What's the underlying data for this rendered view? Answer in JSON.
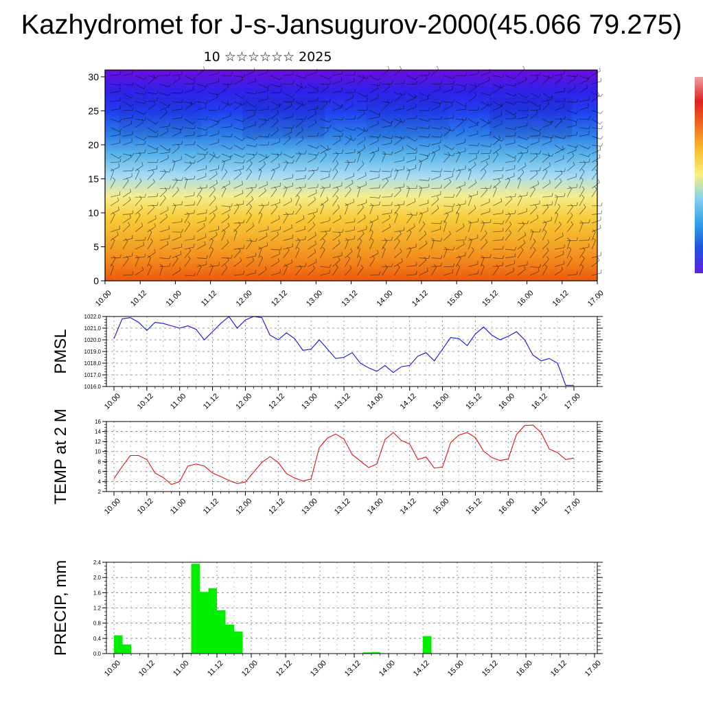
{
  "title": "Kazhydromet for J-s-Jansugurov-2000(45.066 79.275)",
  "subtitle": "10 ☆☆☆☆☆☆ 2025",
  "x_tick_labels": [
    "10.00",
    "10.12",
    "11.00",
    "11.12",
    "12.00",
    "12.12",
    "13.00",
    "13.12",
    "14.00",
    "14.12",
    "15.00",
    "15.12",
    "16.00",
    "16.12",
    "17.00"
  ],
  "chart_data": [
    {
      "type": "heatmap",
      "title": "",
      "xlabel": "",
      "ylabel": "",
      "x_ticks": [
        "10.00",
        "10.12",
        "11.00",
        "11.12",
        "12.00",
        "12.12",
        "13.00",
        "13.12",
        "14.00",
        "14.12",
        "15.00",
        "15.12",
        "16.00",
        "16.12",
        "17.00"
      ],
      "y_ticks": [
        0,
        5,
        10,
        15,
        20,
        25,
        30
      ],
      "ylim": [
        0,
        31
      ],
      "colors": [
        "#6a0fe0",
        "#3020e8",
        "#2040f0",
        "#2a7ae8",
        "#59b4ea",
        "#a6daf5",
        "#f6ee8c",
        "#f8cc3a",
        "#f5ae2a",
        "#f38a1c",
        "#ee5a0c"
      ],
      "colorbar_colors": [
        "#f0a0a0",
        "#e02020",
        "#f07020",
        "#f8c030",
        "#f8f080",
        "#80d0f0",
        "#30a0e8",
        "#2050e0",
        "#6020e0"
      ],
      "overlay": "wind barbs"
    },
    {
      "type": "line",
      "ylabel": "PMSL",
      "ylim": [
        1016.0,
        1022.0
      ],
      "y_ticks": [
        "1016.0",
        "1017.0",
        "1018.0",
        "1019.0",
        "1020.0",
        "1021.0",
        "1022.0"
      ],
      "x_ticks": [
        "10.00",
        "10.12",
        "11.00",
        "11.12",
        "12.00",
        "12.12",
        "13.00",
        "13.12",
        "14.00",
        "14.12",
        "15.00",
        "15.12",
        "16.00",
        "16.12",
        "17.00"
      ],
      "series": [
        {
          "color": "#1010e0",
          "values": [
            1020.1,
            1021.8,
            1021.9,
            1021.5,
            1020.8,
            1021.5,
            1021.4,
            1021.2,
            1021.0,
            1021.2,
            1020.9,
            1020.0,
            1020.7,
            1021.4,
            1022.0,
            1021.0,
            1021.7,
            1022.0,
            1021.9,
            1020.4,
            1020.0,
            1020.6,
            1020.1,
            1019.1,
            1019.2,
            1020.0,
            1019.2,
            1018.4,
            1018.5,
            1018.9,
            1018.0,
            1017.6,
            1017.3,
            1017.8,
            1017.2,
            1017.7,
            1017.8,
            1018.6,
            1018.9,
            1018.2,
            1019.2,
            1020.2,
            1020.1,
            1019.5,
            1020.5,
            1021.1,
            1020.4,
            1020.0,
            1020.3,
            1020.7,
            1020.0,
            1018.7,
            1018.2,
            1018.4,
            1018.0,
            1016.1,
            1016.1
          ]
        }
      ]
    },
    {
      "type": "line",
      "ylabel": "TEMP at 2 M",
      "ylim": [
        2,
        16
      ],
      "y_ticks": [
        "2",
        "4",
        "6",
        "8",
        "10",
        "12",
        "14",
        "16"
      ],
      "x_ticks": [
        "10.00",
        "10.12",
        "11.00",
        "11.12",
        "12.00",
        "12.12",
        "13.00",
        "13.12",
        "14.00",
        "14.12",
        "15.00",
        "15.12",
        "16.00",
        "16.12",
        "17.00"
      ],
      "series": [
        {
          "color": "#e01010",
          "values": [
            4.6,
            7.0,
            9.2,
            9.2,
            8.4,
            5.7,
            4.8,
            3.4,
            4.0,
            7.1,
            7.5,
            7.1,
            5.7,
            5.0,
            4.2,
            3.6,
            3.9,
            5.9,
            7.8,
            9.0,
            7.8,
            5.6,
            4.7,
            4.1,
            4.5,
            10.8,
            12.7,
            13.5,
            12.5,
            9.4,
            8.1,
            6.8,
            7.5,
            12.4,
            13.8,
            12.2,
            11.5,
            8.4,
            8.9,
            6.7,
            6.9,
            11.8,
            13.3,
            13.8,
            12.8,
            10.1,
            8.8,
            8.2,
            8.5,
            13.4,
            15.2,
            15.3,
            13.8,
            10.5,
            9.8,
            8.4,
            8.7
          ]
        }
      ]
    },
    {
      "type": "bar",
      "ylabel": "PRECIP, mm",
      "ylim": [
        0,
        2.4
      ],
      "y_ticks": [
        "0.0",
        "0.4",
        "0.8",
        "1.2",
        "1.6",
        "2.0",
        "2.4"
      ],
      "x_ticks": [
        "10.00",
        "10.12",
        "11.00",
        "11.12",
        "12.00",
        "12.12",
        "13.00",
        "13.12",
        "14.00",
        "14.12",
        "15.00",
        "15.12",
        "16.00",
        "16.12",
        "17.00"
      ],
      "color": "#00ee00",
      "values": [
        0.48,
        0.24,
        0,
        0,
        0,
        0,
        0,
        0,
        0.02,
        2.36,
        1.62,
        1.72,
        1.14,
        0.76,
        0.58,
        0,
        0,
        0,
        0,
        0,
        0,
        0,
        0,
        0,
        0,
        0,
        0,
        0,
        0,
        0.03,
        0.04,
        0,
        0,
        0,
        0,
        0,
        0.46,
        0,
        0,
        0,
        0,
        0,
        0,
        0,
        0,
        0,
        0,
        0,
        0,
        0,
        0,
        0,
        0,
        0,
        0,
        0
      ]
    }
  ]
}
